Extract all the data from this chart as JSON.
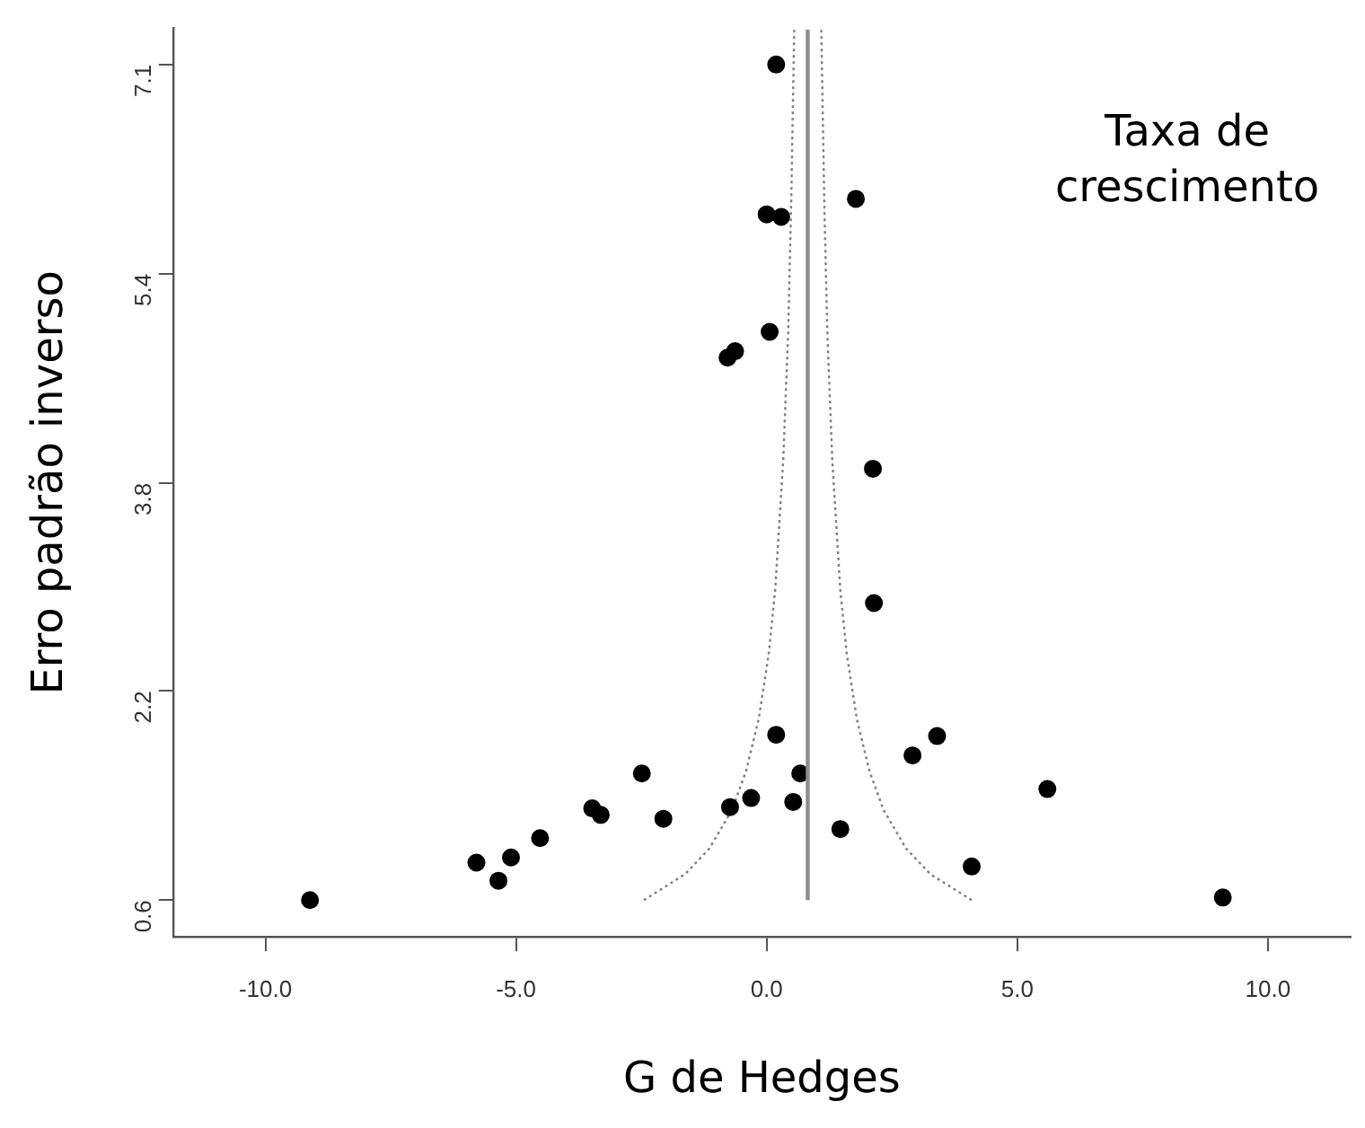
{
  "chart_data": {
    "type": "scatter",
    "xlabel": "G de Hedges",
    "ylabel": "Erro padrão inverso",
    "annotations": [
      "Taxa de crescimento"
    ],
    "xlim": [
      -11.84,
      11.65
    ],
    "xticks": [
      {
        "value": -10,
        "label": "-10.0"
      },
      {
        "value": -5,
        "label": "-5.0"
      },
      {
        "value": 0,
        "label": "0.0"
      },
      {
        "value": 5,
        "label": "5.0"
      },
      {
        "value": 10,
        "label": "10.0"
      }
    ],
    "ylim": [
      0.315,
      7.35
    ],
    "yticks": [
      {
        "value": 0.6,
        "label": "0.6"
      },
      {
        "value": 2.22,
        "label": "2.2"
      },
      {
        "value": 3.83,
        "label": "3.8"
      },
      {
        "value": 5.45,
        "label": "5.4"
      },
      {
        "value": 7.07,
        "label": "7.1"
      }
    ],
    "grid": false,
    "legend": false,
    "ref_lines": [
      {
        "axis": "x",
        "value": 0.82,
        "color": "#8c8c8c",
        "line_style": "solid"
      }
    ],
    "series": [
      {
        "type": "scatter",
        "color": "#000000",
        "marker": "circle",
        "x": [
          -9.11,
          -5.79,
          -5.1,
          -5.35,
          -4.52,
          -3.48,
          -3.31,
          -2.49,
          -2.06,
          -0.73,
          -0.31,
          0.19,
          0.67,
          0.53,
          1.47,
          2.91,
          3.4,
          5.6,
          4.09,
          9.1,
          0.19,
          0.0,
          0.29,
          1.78,
          0.06,
          -0.78,
          -0.63,
          2.12,
          2.14
        ],
        "values": [
          0.6,
          0.89,
          0.93,
          0.75,
          1.08,
          1.31,
          1.26,
          1.58,
          1.23,
          1.32,
          1.39,
          1.88,
          1.58,
          1.36,
          1.15,
          1.72,
          1.87,
          1.46,
          0.86,
          0.62,
          7.07,
          5.91,
          5.89,
          6.03,
          5.0,
          4.8,
          4.85,
          3.94,
          2.9
        ]
      },
      {
        "type": "line",
        "color": "#7f7f7f",
        "line_style": "dotted",
        "marker": "none",
        "x": [
          -2.45,
          -1.63,
          -1.14,
          -0.69,
          -0.41,
          -0.16,
          0.04,
          0.17,
          0.33,
          0.43,
          0.49,
          0.55
        ],
        "values": [
          0.6,
          0.8,
          1.0,
          1.3,
          1.6,
          2.0,
          2.5,
          3.0,
          4.0,
          5.0,
          6.0,
          7.34
        ]
      },
      {
        "type": "line",
        "color": "#7f7f7f",
        "line_style": "dotted",
        "marker": "none",
        "x": [
          4.09,
          3.27,
          2.78,
          2.33,
          2.05,
          1.8,
          1.6,
          1.47,
          1.31,
          1.21,
          1.15,
          1.09
        ],
        "values": [
          0.6,
          0.8,
          1.0,
          1.3,
          1.6,
          2.0,
          2.5,
          3.0,
          4.0,
          5.0,
          6.0,
          7.34
        ]
      }
    ]
  }
}
